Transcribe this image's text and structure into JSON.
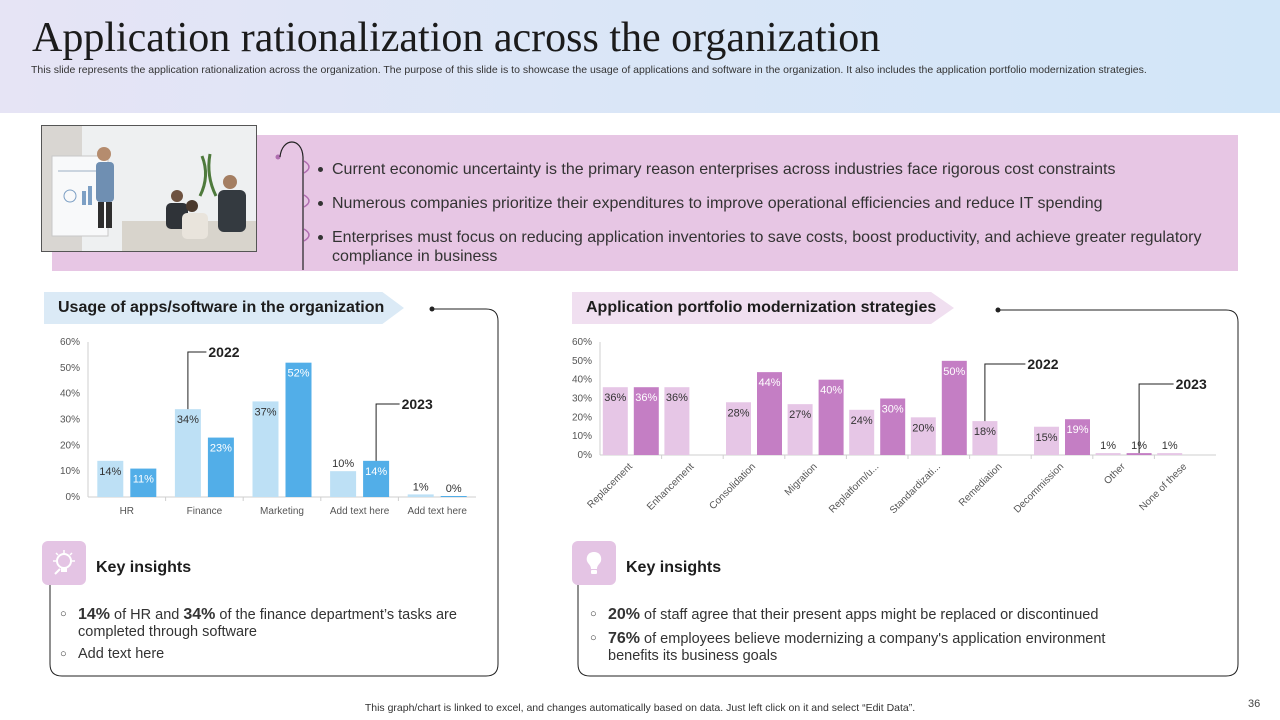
{
  "header": {
    "title": "Application rationalization across the organization",
    "subtitle": "This slide represents the application rationalization across the organization. The purpose of this slide is to showcase the usage of applications and software in the organization. It also includes the application portfolio modernization strategies."
  },
  "banner": {
    "bullets": [
      "Current economic uncertainty  is the primary reason enterprises across industries face rigorous cost constraints",
      "Numerous companies prioritize their expenditures to improve operational efficiencies and reduce IT spending",
      "Enterprises must focus on reducing application inventories to save costs, boost productivity, and achieve greater regulatory compliance in business"
    ]
  },
  "left_section": {
    "title": "Usage of apps/software in the organization",
    "insights_title": "Key insights",
    "insights": [
      {
        "pre": "",
        "b1": "14%",
        "mid": " of HR and ",
        "b2": "34%",
        "post": " of the finance department’s tasks are completed through software"
      },
      {
        "pre": "Add text here",
        "b1": "",
        "mid": "",
        "b2": "",
        "post": ""
      }
    ]
  },
  "right_section": {
    "title": "Application portfolio modernization strategies",
    "insights_title": "Key insights",
    "insights": [
      {
        "b1": "20%",
        "post": " of staff agree that their present apps might be replaced or discontinued"
      },
      {
        "b1": "76%",
        "post": " of employees believe modernizing a company's application environment benefits its business goals"
      }
    ]
  },
  "chart_data": [
    {
      "type": "bar",
      "categories": [
        "HR",
        "Finance",
        "Marketing",
        "Add text here",
        "Add text here"
      ],
      "series": [
        {
          "name": "2022",
          "values": [
            14,
            34,
            37,
            10,
            1
          ],
          "color": "#bde0f5"
        },
        {
          "name": "2023",
          "values": [
            11,
            23,
            52,
            14,
            0
          ],
          "color": "#52aee8"
        }
      ],
      "value_labels": [
        [
          "14%",
          "34%",
          "37%",
          "10%",
          "1%"
        ],
        [
          "11%",
          "23%",
          "52%",
          "14%",
          "0%"
        ]
      ],
      "ylim": [
        0,
        60
      ],
      "yticks": [
        "0%",
        "10%",
        "20%",
        "30%",
        "40%",
        "50%",
        "60%"
      ],
      "grid": false,
      "legend": "callouts"
    },
    {
      "type": "bar",
      "categories": [
        "Replacement",
        "Enhancement",
        "Consolidation",
        "Migration",
        "Replatform/u...",
        "Standardizati...",
        "Remediation",
        "Decommission",
        "Other",
        "None of these"
      ],
      "series": [
        {
          "name": "2022",
          "values": [
            36,
            36,
            28,
            27,
            24,
            20,
            18,
            15,
            1,
            1
          ],
          "color": "#e6c6e6"
        },
        {
          "name": "2023",
          "values": [
            36,
            null,
            44,
            40,
            30,
            50,
            null,
            19,
            1,
            null
          ],
          "color": "#c47ec4"
        }
      ],
      "value_labels": [
        [
          "36%",
          "36%",
          "28%",
          "27%",
          "24%",
          "20%",
          "18%",
          "15%",
          "1%",
          "1%"
        ],
        [
          "36%",
          "",
          "44%",
          "40%",
          "30%",
          "50%",
          "",
          "19%",
          "1%",
          ""
        ]
      ],
      "ylim": [
        0,
        60
      ],
      "yticks": [
        "0%",
        "10%",
        "20%",
        "30%",
        "40%",
        "50%",
        "60%"
      ],
      "grid": false,
      "legend": "callouts"
    }
  ],
  "footer": {
    "note": "This graph/chart is linked to excel,  and changes automatically based on data. Just left click on it and select “Edit Data”.",
    "page": "36"
  },
  "colors": {
    "banner": "#e7c6e4",
    "left_light": "#bde0f5",
    "left_dark": "#52aee8",
    "right_light": "#e6c6e6",
    "right_dark": "#c47ec4"
  }
}
